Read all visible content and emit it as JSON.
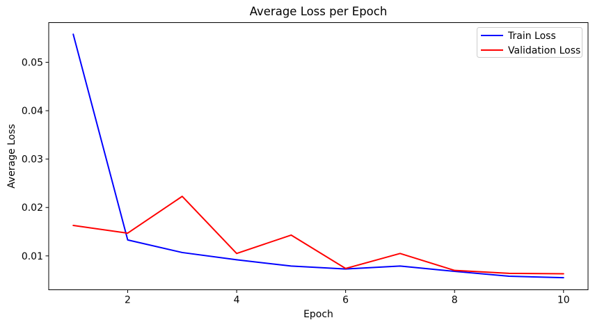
{
  "chart_data": {
    "type": "line",
    "title": "Average Loss per Epoch",
    "xlabel": "Epoch",
    "ylabel": "Average Loss",
    "x": [
      1,
      2,
      3,
      4,
      5,
      6,
      7,
      8,
      9,
      10
    ],
    "series": [
      {
        "name": "Train Loss",
        "color": "#0000ff",
        "values": [
          0.0558,
          0.0133,
          0.0107,
          0.0092,
          0.0079,
          0.0073,
          0.0079,
          0.0068,
          0.0058,
          0.0055
        ]
      },
      {
        "name": "Validation Loss",
        "color": "#ff0000",
        "values": [
          0.0163,
          0.0147,
          0.0223,
          0.0105,
          0.0143,
          0.0074,
          0.0105,
          0.007,
          0.0064,
          0.0063
        ]
      }
    ],
    "xlim": [
      0.55,
      10.45
    ],
    "ylim": [
      0.003,
      0.0582
    ],
    "xticks": [
      2,
      4,
      6,
      8,
      10
    ],
    "xtick_labels": [
      "2",
      "4",
      "6",
      "8",
      "10"
    ],
    "yticks": [
      0.01,
      0.02,
      0.03,
      0.04,
      0.05
    ],
    "ytick_labels": [
      "0.01",
      "0.02",
      "0.03",
      "0.04",
      "0.05"
    ],
    "grid": false,
    "legend_position": "upper right",
    "background_color": "#ffffff",
    "axis_color": "#000000",
    "legend_border_color": "#cccccc"
  }
}
